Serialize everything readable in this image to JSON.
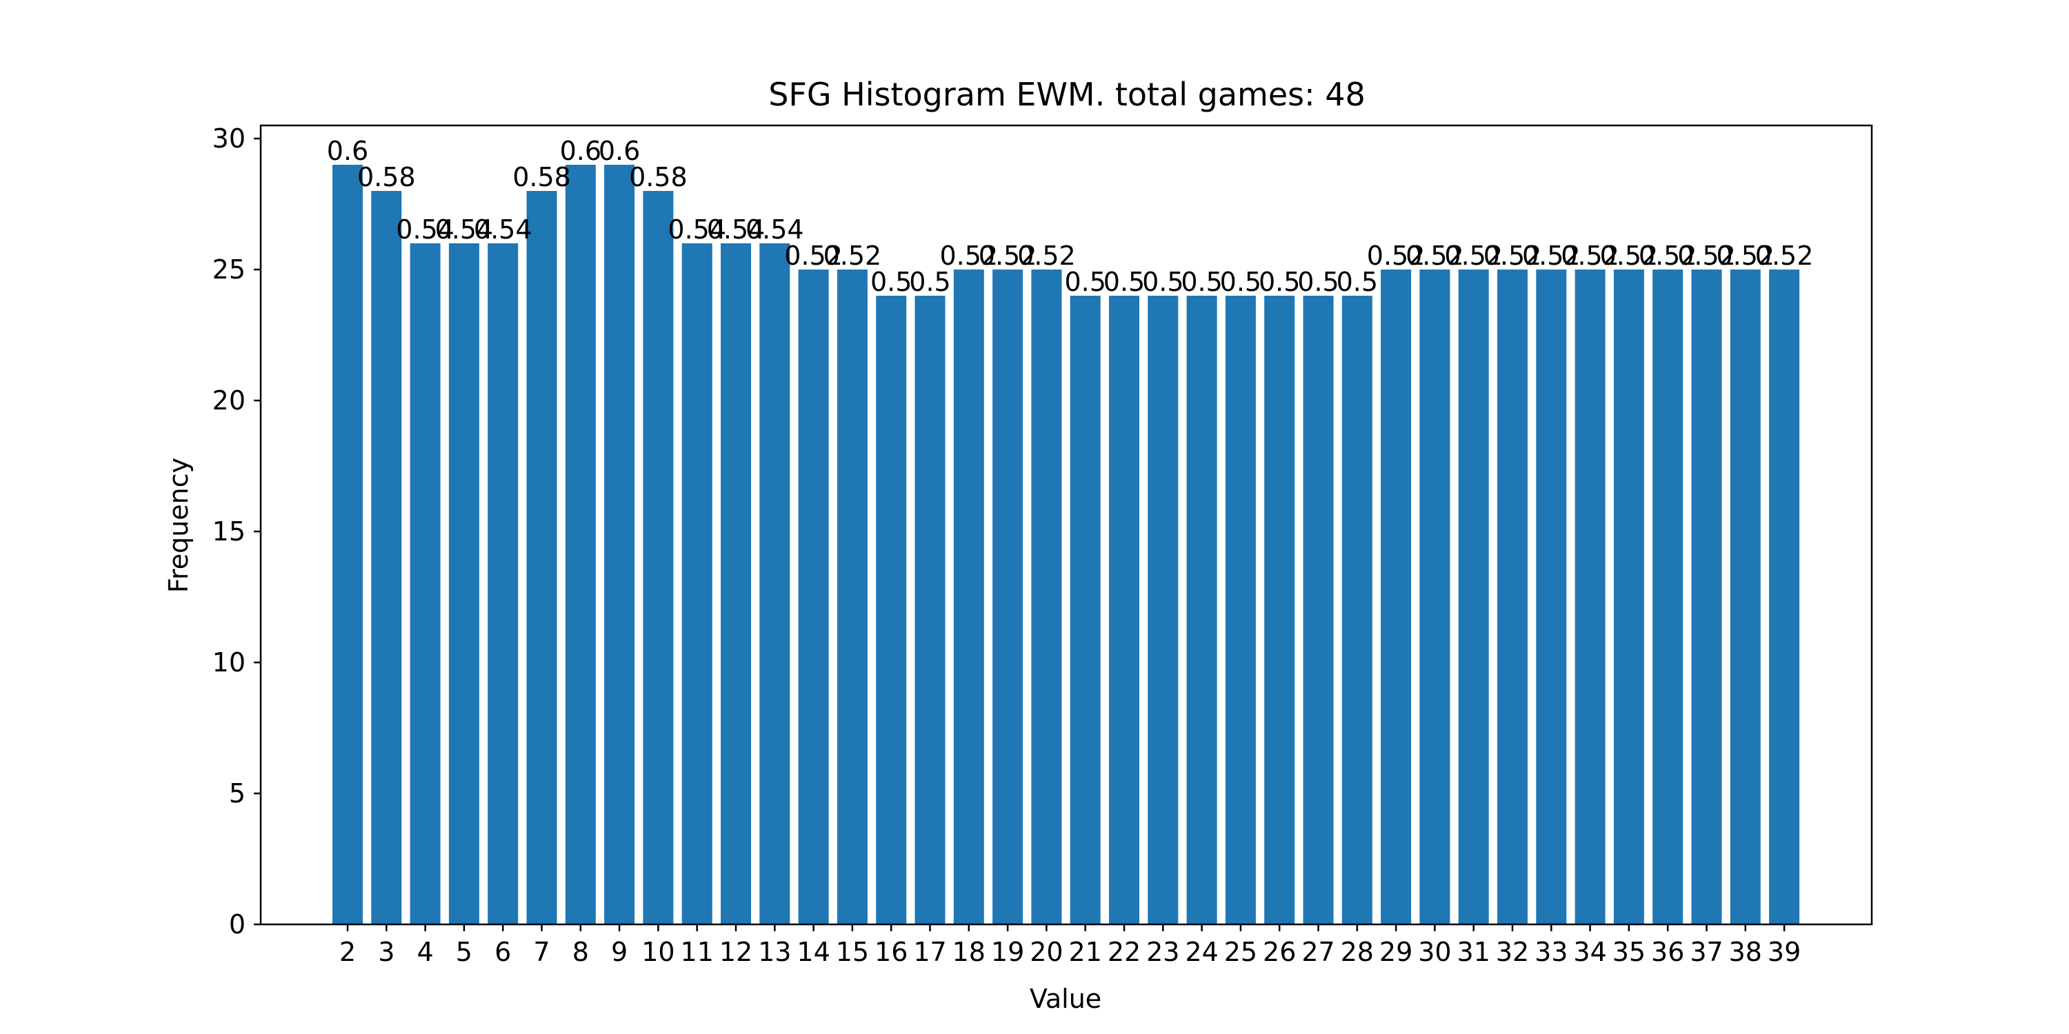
{
  "chart_data": {
    "type": "bar",
    "title": "SFG Histogram EWM. total games: 48",
    "xlabel": "Value",
    "ylabel": "Frequency",
    "ylim": [
      0,
      30.5
    ],
    "yticks": [
      0,
      5,
      10,
      15,
      20,
      25,
      30
    ],
    "categories": [
      "2",
      "3",
      "4",
      "5",
      "6",
      "7",
      "8",
      "9",
      "10",
      "11",
      "12",
      "13",
      "14",
      "15",
      "16",
      "17",
      "18",
      "19",
      "20",
      "21",
      "22",
      "23",
      "24",
      "25",
      "26",
      "27",
      "28",
      "29",
      "30",
      "31",
      "32",
      "33",
      "34",
      "35",
      "36",
      "37",
      "38",
      "39"
    ],
    "values": [
      29,
      28,
      26,
      26,
      26,
      28,
      29,
      29,
      28,
      26,
      26,
      26,
      25,
      25,
      24,
      24,
      25,
      25,
      25,
      24,
      24,
      24,
      24,
      24,
      24,
      24,
      24,
      25,
      25,
      25,
      25,
      25,
      25,
      25,
      25,
      25,
      25,
      25
    ],
    "bar_labels": [
      "0.6",
      "0.58",
      "0.54",
      "0.54",
      "0.54",
      "0.58",
      "0.6",
      "0.6",
      "0.58",
      "0.54",
      "0.54",
      "0.54",
      "0.52",
      "0.52",
      "0.5",
      "0.5",
      "0.52",
      "0.52",
      "0.52",
      "0.5",
      "0.5",
      "0.5",
      "0.5",
      "0.5",
      "0.5",
      "0.5",
      "0.5",
      "0.52",
      "0.52",
      "0.52",
      "0.52",
      "0.52",
      "0.52",
      "0.52",
      "0.52",
      "0.52",
      "0.52",
      "0.52"
    ],
    "bar_color": "#1f77b4",
    "grid": false
  }
}
